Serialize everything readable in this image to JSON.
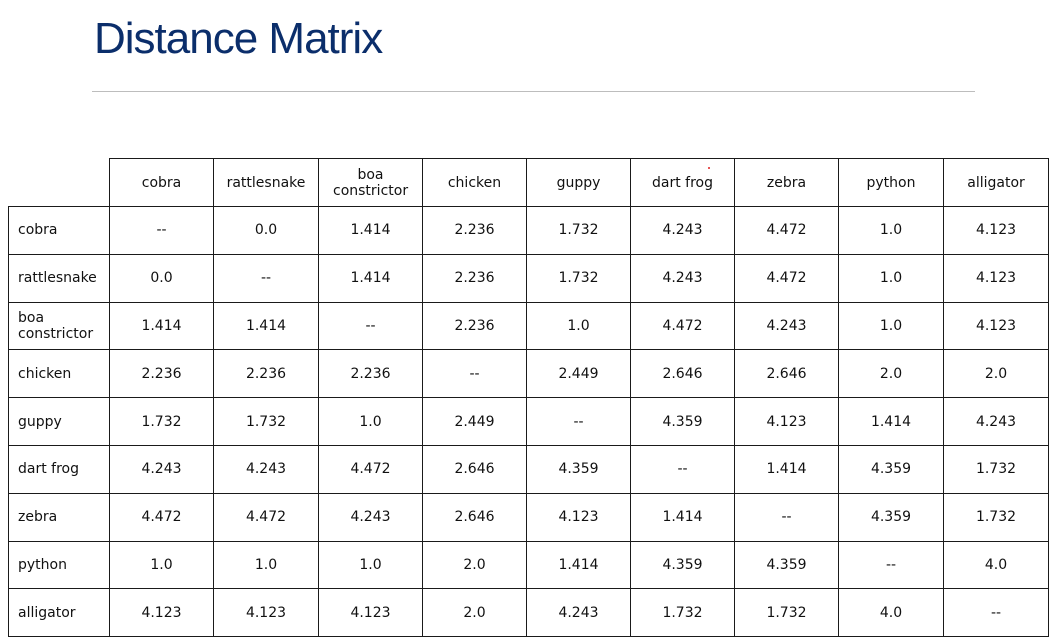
{
  "slide": {
    "title": "Distance Matrix"
  },
  "matrix": {
    "columns": [
      "cobra",
      "rattlesnake",
      "boa constrictor",
      "chicken",
      "guppy",
      "dart frog",
      "zebra",
      "python",
      "alligator"
    ],
    "rows": [
      {
        "label": "cobra",
        "values": [
          "--",
          "0.0",
          "1.414",
          "2.236",
          "1.732",
          "4.243",
          "4.472",
          "1.0",
          "4.123"
        ]
      },
      {
        "label": "rattlesnake",
        "values": [
          "0.0",
          "--",
          "1.414",
          "2.236",
          "1.732",
          "4.243",
          "4.472",
          "1.0",
          "4.123"
        ]
      },
      {
        "label": "boa constrictor",
        "values": [
          "1.414",
          "1.414",
          "--",
          "2.236",
          "1.0",
          "4.472",
          "4.243",
          "1.0",
          "4.123"
        ]
      },
      {
        "label": "chicken",
        "values": [
          "2.236",
          "2.236",
          "2.236",
          "--",
          "2.449",
          "2.646",
          "2.646",
          "2.0",
          "2.0"
        ]
      },
      {
        "label": "guppy",
        "values": [
          "1.732",
          "1.732",
          "1.0",
          "2.449",
          "--",
          "4.359",
          "4.123",
          "1.414",
          "4.243"
        ]
      },
      {
        "label": "dart frog",
        "values": [
          "4.243",
          "4.243",
          "4.472",
          "2.646",
          "4.359",
          "--",
          "1.414",
          "4.359",
          "1.732"
        ]
      },
      {
        "label": "zebra",
        "values": [
          "4.472",
          "4.472",
          "4.243",
          "2.646",
          "4.123",
          "1.414",
          "--",
          "4.359",
          "1.732"
        ]
      },
      {
        "label": "python",
        "values": [
          "1.0",
          "1.0",
          "1.0",
          "2.0",
          "1.414",
          "4.359",
          "4.359",
          "--",
          "4.0"
        ]
      },
      {
        "label": "alligator",
        "values": [
          "4.123",
          "4.123",
          "4.123",
          "2.0",
          "4.243",
          "1.732",
          "1.732",
          "4.0",
          "--"
        ]
      }
    ]
  }
}
